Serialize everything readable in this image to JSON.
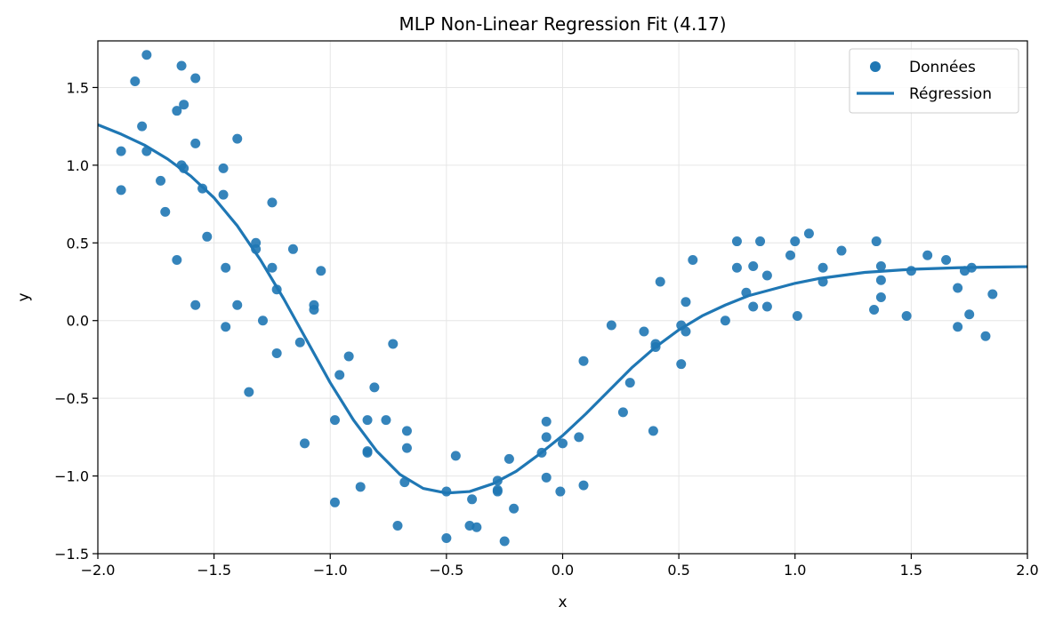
{
  "chart_data": {
    "type": "scatter",
    "title": "MLP Non-Linear Regression Fit (4.17)",
    "xlabel": "x",
    "ylabel": "y",
    "xlim": [
      -2.0,
      2.0
    ],
    "ylim": [
      -1.5,
      1.8
    ],
    "x_ticks": [
      "−2.0",
      "−1.5",
      "−1.0",
      "−0.5",
      "0.0",
      "0.5",
      "1.0",
      "1.5",
      "2.0"
    ],
    "x_tick_values": [
      -2.0,
      -1.5,
      -1.0,
      -0.5,
      0.0,
      0.5,
      1.0,
      1.5,
      2.0
    ],
    "y_ticks": [
      "−1.5",
      "−1.0",
      "−0.5",
      "0.0",
      "0.5",
      "1.0",
      "1.5"
    ],
    "y_tick_values": [
      -1.5,
      -1.0,
      -0.5,
      0.0,
      0.5,
      1.0,
      1.5
    ],
    "grid": true,
    "legend_position": "top-right",
    "colors": {
      "scatter": "#1f77b4",
      "line": "#1f77b4"
    },
    "series": [
      {
        "name": "Données",
        "kind": "scatter",
        "points": [
          [
            -1.9,
            1.09
          ],
          [
            -1.9,
            0.84
          ],
          [
            -1.84,
            1.54
          ],
          [
            -1.81,
            1.25
          ],
          [
            -1.79,
            1.71
          ],
          [
            -1.79,
            1.09
          ],
          [
            -1.73,
            0.9
          ],
          [
            -1.71,
            0.7
          ],
          [
            -1.66,
            1.35
          ],
          [
            -1.66,
            0.39
          ],
          [
            -1.64,
            1.64
          ],
          [
            -1.64,
            1.0
          ],
          [
            -1.63,
            1.39
          ],
          [
            -1.63,
            0.98
          ],
          [
            -1.58,
            1.56
          ],
          [
            -1.58,
            1.14
          ],
          [
            -1.58,
            0.1
          ],
          [
            -1.55,
            0.85
          ],
          [
            -1.53,
            0.54
          ],
          [
            -1.46,
            0.98
          ],
          [
            -1.46,
            0.81
          ],
          [
            -1.45,
            0.34
          ],
          [
            -1.45,
            -0.04
          ],
          [
            -1.4,
            1.17
          ],
          [
            -1.4,
            0.1
          ],
          [
            -1.35,
            -0.46
          ],
          [
            -1.32,
            0.5
          ],
          [
            -1.32,
            0.46
          ],
          [
            -1.29,
            0.0
          ],
          [
            -1.25,
            0.76
          ],
          [
            -1.25,
            0.34
          ],
          [
            -1.23,
            0.2
          ],
          [
            -1.23,
            -0.21
          ],
          [
            -1.16,
            0.46
          ],
          [
            -1.13,
            -0.14
          ],
          [
            -1.11,
            -0.79
          ],
          [
            -1.07,
            0.1
          ],
          [
            -1.07,
            0.07
          ],
          [
            -1.04,
            0.32
          ],
          [
            -0.98,
            -0.64
          ],
          [
            -0.98,
            -1.17
          ],
          [
            -0.96,
            -0.35
          ],
          [
            -0.92,
            -0.23
          ],
          [
            -0.87,
            -1.07
          ],
          [
            -0.84,
            -0.64
          ],
          [
            -0.84,
            -0.84
          ],
          [
            -0.84,
            -0.85
          ],
          [
            -0.81,
            -0.43
          ],
          [
            -0.76,
            -0.64
          ],
          [
            -0.73,
            -0.15
          ],
          [
            -0.71,
            -1.32
          ],
          [
            -0.68,
            -1.04
          ],
          [
            -0.67,
            -0.71
          ],
          [
            -0.67,
            -0.82
          ],
          [
            -0.5,
            -1.1
          ],
          [
            -0.5,
            -1.4
          ],
          [
            -0.46,
            -0.87
          ],
          [
            -0.4,
            -1.32
          ],
          [
            -0.39,
            -1.15
          ],
          [
            -0.37,
            -1.33
          ],
          [
            -0.28,
            -1.03
          ],
          [
            -0.28,
            -1.09
          ],
          [
            -0.28,
            -1.1
          ],
          [
            -0.25,
            -1.42
          ],
          [
            -0.23,
            -0.89
          ],
          [
            -0.21,
            -1.21
          ],
          [
            -0.09,
            -0.85
          ],
          [
            -0.07,
            -0.65
          ],
          [
            -0.07,
            -0.75
          ],
          [
            -0.07,
            -1.01
          ],
          [
            0.0,
            -0.79
          ],
          [
            -0.01,
            -1.1
          ],
          [
            0.07,
            -0.75
          ],
          [
            0.09,
            -0.26
          ],
          [
            0.09,
            -1.06
          ],
          [
            0.21,
            -0.03
          ],
          [
            0.26,
            -0.59
          ],
          [
            0.29,
            -0.4
          ],
          [
            0.35,
            -0.07
          ],
          [
            0.4,
            -0.15
          ],
          [
            0.4,
            -0.17
          ],
          [
            0.39,
            -0.71
          ],
          [
            0.42,
            0.25
          ],
          [
            0.51,
            -0.03
          ],
          [
            0.51,
            -0.28
          ],
          [
            0.53,
            0.12
          ],
          [
            0.53,
            -0.07
          ],
          [
            0.56,
            0.39
          ],
          [
            0.7,
            0.0
          ],
          [
            0.75,
            0.51
          ],
          [
            0.75,
            0.34
          ],
          [
            0.79,
            0.18
          ],
          [
            0.82,
            0.35
          ],
          [
            0.82,
            0.09
          ],
          [
            0.85,
            0.51
          ],
          [
            0.88,
            0.29
          ],
          [
            0.88,
            0.09
          ],
          [
            0.98,
            0.42
          ],
          [
            1.0,
            0.51
          ],
          [
            1.01,
            0.03
          ],
          [
            1.06,
            0.56
          ],
          [
            1.12,
            0.34
          ],
          [
            1.12,
            0.25
          ],
          [
            1.2,
            0.45
          ],
          [
            1.34,
            0.07
          ],
          [
            1.35,
            0.51
          ],
          [
            1.37,
            0.35
          ],
          [
            1.37,
            0.26
          ],
          [
            1.37,
            0.15
          ],
          [
            1.48,
            0.03
          ],
          [
            1.5,
            0.32
          ],
          [
            1.57,
            0.42
          ],
          [
            1.65,
            0.39
          ],
          [
            1.7,
            0.21
          ],
          [
            1.7,
            -0.04
          ],
          [
            1.73,
            0.32
          ],
          [
            1.75,
            0.04
          ],
          [
            1.76,
            0.34
          ],
          [
            1.82,
            -0.1
          ],
          [
            1.85,
            0.17
          ]
        ]
      },
      {
        "name": "Régression",
        "kind": "line",
        "x": [
          -2.0,
          -1.9,
          -1.8,
          -1.7,
          -1.6,
          -1.5,
          -1.4,
          -1.3,
          -1.2,
          -1.1,
          -1.0,
          -0.9,
          -0.8,
          -0.7,
          -0.6,
          -0.5,
          -0.4,
          -0.3,
          -0.2,
          -0.1,
          0.0,
          0.1,
          0.2,
          0.3,
          0.4,
          0.5,
          0.6,
          0.7,
          0.8,
          0.9,
          1.0,
          1.1,
          1.2,
          1.3,
          1.4,
          1.5,
          1.6,
          1.7,
          1.8,
          1.9,
          2.0
        ],
        "y": [
          1.26,
          1.2,
          1.13,
          1.04,
          0.93,
          0.79,
          0.61,
          0.39,
          0.14,
          -0.13,
          -0.4,
          -0.64,
          -0.84,
          -0.99,
          -1.08,
          -1.11,
          -1.1,
          -1.05,
          -0.97,
          -0.86,
          -0.74,
          -0.6,
          -0.45,
          -0.3,
          -0.17,
          -0.06,
          0.03,
          0.1,
          0.16,
          0.2,
          0.24,
          0.27,
          0.29,
          0.31,
          0.32,
          0.33,
          0.335,
          0.34,
          0.343,
          0.345,
          0.347
        ]
      }
    ]
  }
}
